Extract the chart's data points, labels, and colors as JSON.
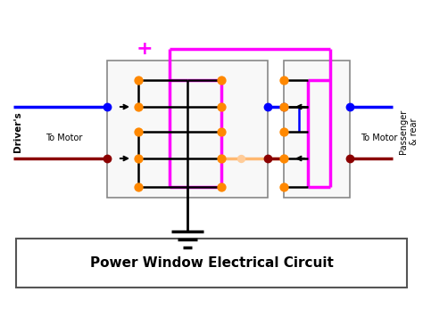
{
  "title": "Power Window Electrical Circuit",
  "background_color": "#ffffff",
  "title_fontsize": 11,
  "pink": "#ff00ff",
  "blue": "#0000ff",
  "dark_red": "#8b0000",
  "black": "#000000",
  "orange_wire": "#ffb870",
  "node_orange": "#ff8800",
  "drivers_label": "Driver's",
  "to_motor_left": "To Motor",
  "to_motor_right": "To Motor",
  "passenger_label": "Passenger\n& rear"
}
